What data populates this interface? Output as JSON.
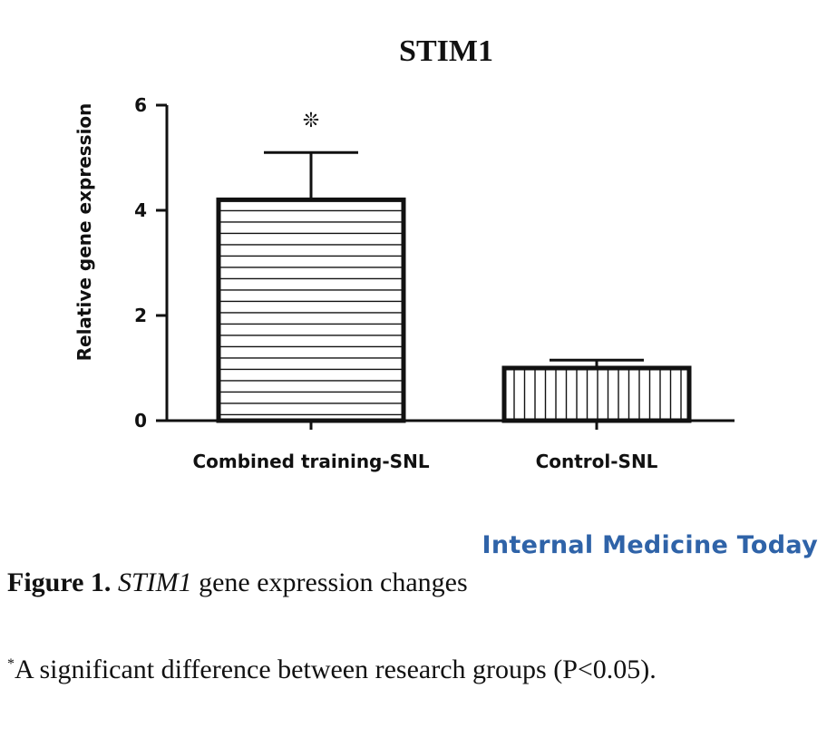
{
  "chart_data": {
    "type": "bar",
    "title": "STIM1",
    "ylabel": "Relative gene expression",
    "xlabel": "",
    "categories": [
      "Combined training-SNL",
      "Control-SNL"
    ],
    "values": [
      4.2,
      1.0
    ],
    "error_upper": [
      5.1,
      1.15
    ],
    "bar_patterns": [
      "horizontal-stripes",
      "vertical-stripes"
    ],
    "significance_markers": [
      "❊",
      ""
    ],
    "ylim": [
      0,
      6
    ],
    "yticks": [
      "0",
      "2",
      "4",
      "6"
    ],
    "grid": false,
    "legend": "none"
  },
  "watermark": "Internal Medicine Today",
  "caption": {
    "label": "Figure 1.",
    "gene": "STIM1",
    "text": " gene expression changes"
  },
  "note": {
    "marker": "*",
    "text": "A significant difference between research groups (P<0.05)."
  },
  "colors": {
    "ink": "#111111",
    "watermark": "#2f63a8"
  }
}
